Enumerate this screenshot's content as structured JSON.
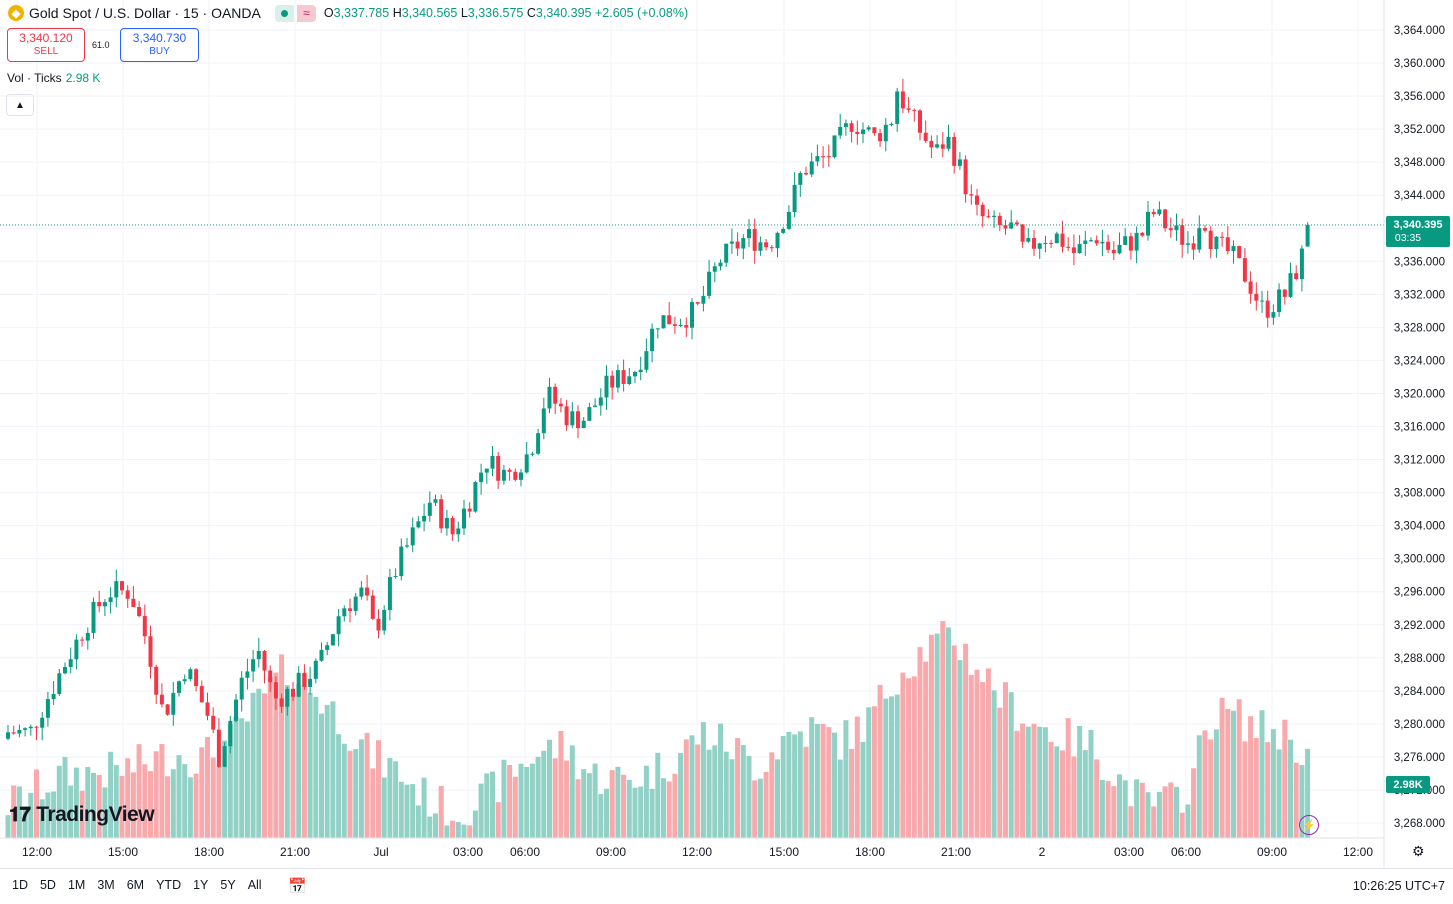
{
  "header": {
    "symbol": "Gold Spot / U.S. Dollar · 15 · OANDA",
    "wave_icon": "≈",
    "o_label": "O",
    "o_value": "3,337.785",
    "h_label": "H",
    "h_value": "3,340.565",
    "l_label": "L",
    "l_value": "3,336.575",
    "c_label": "C",
    "c_value": "3,340.395",
    "change": "+2.605 (+0.08%)"
  },
  "trade": {
    "sell_price": "3,340.120",
    "sell_label": "SELL",
    "buy_price": "3,340.730",
    "buy_label": "BUY",
    "spread": "61.0"
  },
  "volume_legend": {
    "label": "Vol · Ticks",
    "value": "2.98 K"
  },
  "brand": {
    "name": "TradingView"
  },
  "ranges": [
    "1D",
    "5D",
    "1M",
    "3M",
    "6M",
    "YTD",
    "1Y",
    "5Y",
    "All"
  ],
  "clock": "10:26:25 UTC+7",
  "colors": {
    "up": "#089981",
    "down": "#f23645",
    "vol_up": "#92d2c6",
    "vol_down": "#f7a9ab"
  },
  "chart_data": {
    "type": "candlestick",
    "interval": "15",
    "y_ticks": [
      3268,
      3272,
      3276,
      3280,
      3284,
      3288,
      3292,
      3296,
      3300,
      3304,
      3308,
      3312,
      3316,
      3320,
      3324,
      3328,
      3332,
      3336,
      3340,
      3344,
      3348,
      3352,
      3356,
      3360,
      3364
    ],
    "y_tick_labels": [
      "3,268.000",
      "3,272.000",
      "3,276.000",
      "3,280.000",
      "3,284.000",
      "3,288.000",
      "3,292.000",
      "3,296.000",
      "3,300.000",
      "3,304.000",
      "3,308.000",
      "3,312.000",
      "3,316.000",
      "3,320.000",
      "3,324.000",
      "3,328.000",
      "3,332.000",
      "3,336.000",
      "3,340.000",
      "3,344.000",
      "3,348.000",
      "3,352.000",
      "3,356.000",
      "3,360.000",
      "3,364.000"
    ],
    "ylim": [
      3266,
      3368
    ],
    "x_labels": [
      "12:00",
      "15:00",
      "18:00",
      "21:00",
      "Jul",
      "03:00",
      "06:00",
      "09:00",
      "12:00",
      "15:00",
      "18:00",
      "21:00",
      "2",
      "03:00",
      "06:00",
      "09:00",
      "12:00"
    ],
    "last_price": "3,340.395",
    "countdown": "03:35",
    "last_volume": "2.98K",
    "anchors": [
      [
        0,
        3279
      ],
      [
        4,
        3279
      ],
      [
        10,
        3287
      ],
      [
        14,
        3292
      ],
      [
        18,
        3296
      ],
      [
        22,
        3296
      ],
      [
        25,
        3290
      ],
      [
        28,
        3281
      ],
      [
        32,
        3287
      ],
      [
        36,
        3281
      ],
      [
        38,
        3276
      ],
      [
        42,
        3285
      ],
      [
        45,
        3289
      ],
      [
        48,
        3283
      ],
      [
        51,
        3284
      ],
      [
        56,
        3287
      ],
      [
        60,
        3294
      ],
      [
        64,
        3296
      ],
      [
        66,
        3291
      ],
      [
        70,
        3299
      ],
      [
        73,
        3303
      ],
      [
        76,
        3307
      ],
      [
        80,
        3303
      ],
      [
        83,
        3307
      ],
      [
        86,
        3312
      ],
      [
        90,
        3310
      ],
      [
        94,
        3313
      ],
      [
        97,
        3320
      ],
      [
        101,
        3317
      ],
      [
        104,
        3317
      ],
      [
        108,
        3321
      ],
      [
        113,
        3323
      ],
      [
        117,
        3329
      ],
      [
        121,
        3329
      ],
      [
        124,
        3330
      ],
      [
        126,
        3333
      ],
      [
        128,
        3336
      ],
      [
        133,
        3339
      ],
      [
        137,
        3338
      ],
      [
        141,
        3343
      ],
      [
        143,
        3347
      ],
      [
        148,
        3349
      ],
      [
        152,
        3353
      ],
      [
        156,
        3351
      ],
      [
        159,
        3353
      ],
      [
        160,
        3357
      ],
      [
        162,
        3354
      ],
      [
        164,
        3352
      ],
      [
        167,
        3349
      ],
      [
        169,
        3351
      ],
      [
        171,
        3348
      ],
      [
        174,
        3342
      ],
      [
        178,
        3340
      ],
      [
        181,
        3340
      ],
      [
        183,
        3337
      ],
      [
        186,
        3339
      ],
      [
        189,
        3339
      ],
      [
        192,
        3337
      ],
      [
        196,
        3339
      ],
      [
        199,
        3337
      ],
      [
        201,
        3338
      ],
      [
        204,
        3339
      ],
      [
        206,
        3342
      ],
      [
        209,
        3340
      ],
      [
        213,
        3338
      ],
      [
        215,
        3342
      ],
      [
        217,
        3338
      ],
      [
        220,
        3337
      ],
      [
        223,
        3334
      ],
      [
        226,
        3330
      ],
      [
        228,
        3331
      ],
      [
        230,
        3332
      ],
      [
        232,
        3335
      ],
      [
        235,
        3340
      ]
    ],
    "volume_anchors": [
      [
        0,
        0.8
      ],
      [
        10,
        1.5
      ],
      [
        20,
        1.6
      ],
      [
        30,
        2.0
      ],
      [
        35,
        1.9
      ],
      [
        40,
        2.3
      ],
      [
        45,
        3.2
      ],
      [
        50,
        4.0
      ],
      [
        55,
        3.5
      ],
      [
        60,
        2.8
      ],
      [
        65,
        2.0
      ],
      [
        70,
        1.6
      ],
      [
        75,
        1.0
      ],
      [
        80,
        0.6
      ],
      [
        85,
        0.9
      ],
      [
        90,
        1.5
      ],
      [
        95,
        2.0
      ],
      [
        100,
        2.2
      ],
      [
        105,
        1.5
      ],
      [
        110,
        1.4
      ],
      [
        115,
        1.5
      ],
      [
        120,
        1.9
      ],
      [
        125,
        2.5
      ],
      [
        130,
        2.2
      ],
      [
        135,
        1.7
      ],
      [
        140,
        2.4
      ],
      [
        145,
        2.6
      ],
      [
        150,
        2.3
      ],
      [
        155,
        2.8
      ],
      [
        160,
        3.9
      ],
      [
        165,
        4.5
      ],
      [
        170,
        4.8
      ],
      [
        175,
        4.0
      ],
      [
        180,
        3.2
      ],
      [
        185,
        2.7
      ],
      [
        190,
        2.4
      ],
      [
        195,
        2.2
      ],
      [
        200,
        1.4
      ],
      [
        205,
        0.8
      ],
      [
        210,
        0.9
      ],
      [
        213,
        1.3
      ],
      [
        216,
        2.8
      ],
      [
        220,
        3.0
      ],
      [
        225,
        2.6
      ],
      [
        230,
        2.5
      ],
      [
        235,
        1.8
      ]
    ]
  }
}
